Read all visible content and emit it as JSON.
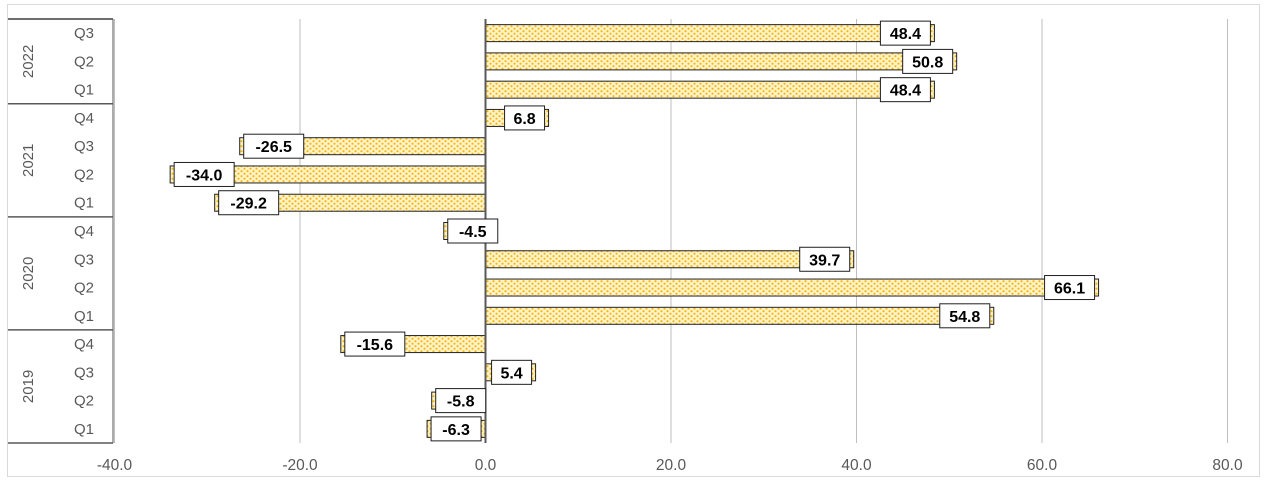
{
  "chart_data": {
    "type": "bar",
    "orientation": "horizontal",
    "title": "",
    "xlabel": "",
    "ylabel": "",
    "xlim": [
      -40,
      80
    ],
    "x_ticks": [
      -40,
      -20,
      0,
      20,
      40,
      60,
      80
    ],
    "x_tick_labels": [
      "-40.0",
      "-20.0",
      "0.0",
      "20.0",
      "40.0",
      "60.0",
      "80.0"
    ],
    "grid": "vertical",
    "legend": "none",
    "colors": {
      "bar_fill": "#fff3c4",
      "bar_dots": "#f2b416",
      "bar_stroke": "#222222",
      "grid": "#bfbfbf",
      "axis": "#595959"
    },
    "groups": [
      {
        "year": "2019",
        "quarters": [
          {
            "label": "Q1",
            "value": -6.3,
            "value_label": "-6.3"
          },
          {
            "label": "Q2",
            "value": -5.8,
            "value_label": "-5.8"
          },
          {
            "label": "Q3",
            "value": 5.4,
            "value_label": "5.4"
          },
          {
            "label": "Q4",
            "value": -15.6,
            "value_label": "-15.6"
          }
        ]
      },
      {
        "year": "2020",
        "quarters": [
          {
            "label": "Q1",
            "value": 54.8,
            "value_label": "54.8"
          },
          {
            "label": "Q2",
            "value": 66.1,
            "value_label": "66.1"
          },
          {
            "label": "Q3",
            "value": 39.7,
            "value_label": "39.7"
          },
          {
            "label": "Q4",
            "value": -4.5,
            "value_label": "-4.5"
          }
        ]
      },
      {
        "year": "2021",
        "quarters": [
          {
            "label": "Q1",
            "value": -29.2,
            "value_label": "-29.2"
          },
          {
            "label": "Q2",
            "value": -34.0,
            "value_label": "-34.0"
          },
          {
            "label": "Q3",
            "value": -26.5,
            "value_label": "-26.5"
          },
          {
            "label": "Q4",
            "value": 6.8,
            "value_label": "6.8"
          }
        ]
      },
      {
        "year": "2022",
        "quarters": [
          {
            "label": "Q1",
            "value": 48.4,
            "value_label": "48.4"
          },
          {
            "label": "Q2",
            "value": 50.8,
            "value_label": "50.8"
          },
          {
            "label": "Q3",
            "value": 48.4,
            "value_label": "48.4"
          }
        ]
      }
    ]
  }
}
